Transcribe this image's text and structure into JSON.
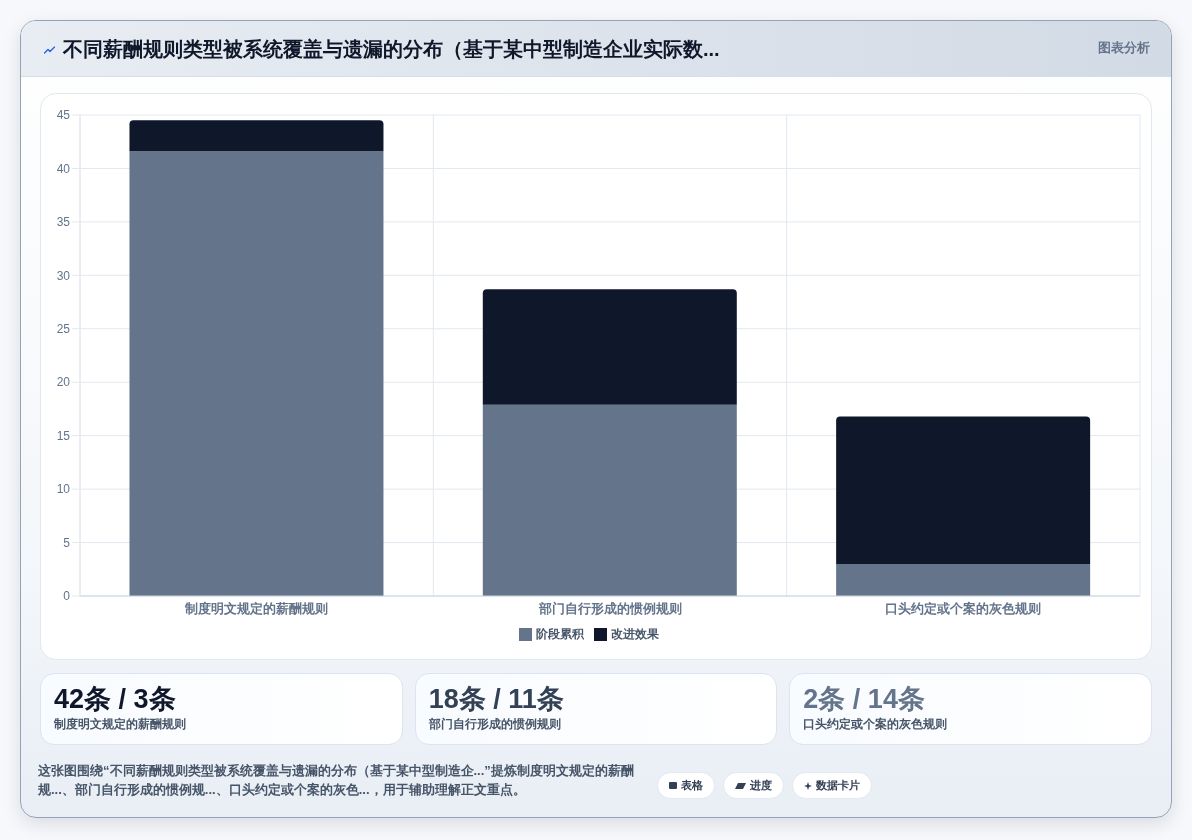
{
  "chart_data": [
    {
      "type": "bar",
      "title": "不同薪酬规则类型被系统覆盖与遗漏的分布（基于某中型制造企业实际数...",
      "categories": [
        "制度明文规定的薪酬规则",
        "部门自行形成的惯例规则",
        "口头约定或个案的灰色规则"
      ],
      "series": [
        {
          "name": "阶段累积",
          "color": "#64748b",
          "values": [
            41.6,
            17.9,
            3
          ]
        },
        {
          "name": "改进效果",
          "color": "#0f172a",
          "values": [
            2.9,
            10.8,
            13.8
          ]
        }
      ],
      "stacked": true,
      "ylim": [
        0,
        45
      ],
      "yticks": [
        0,
        5,
        10,
        15,
        20,
        25,
        30,
        35,
        40,
        45
      ],
      "grid": true,
      "legend": "bottom",
      "annotations": [
        "图表分析",
        "这张图围绕“不同薪酬规则类型被系统覆盖与遗漏的分布（基于某中型制造企...”提炼制度明文规定的薪酬规...、部门自行形成的惯例规...、口头约定或个案的灰色...，用于辅助理解正文重点。",
        "表格",
        "进度",
        "数据卡片"
      ]
    },
    {
      "type": "other",
      "title": "42条 / 3条",
      "subtitle": "制度明文规定的薪酬规则"
    },
    {
      "type": "other",
      "title": "18条 / 11条",
      "subtitle": "部门自行形成的惯例规则"
    },
    {
      "type": "other",
      "title": "2条 / 14条",
      "subtitle": "口头约定或个案的灰色规则"
    }
  ]
}
